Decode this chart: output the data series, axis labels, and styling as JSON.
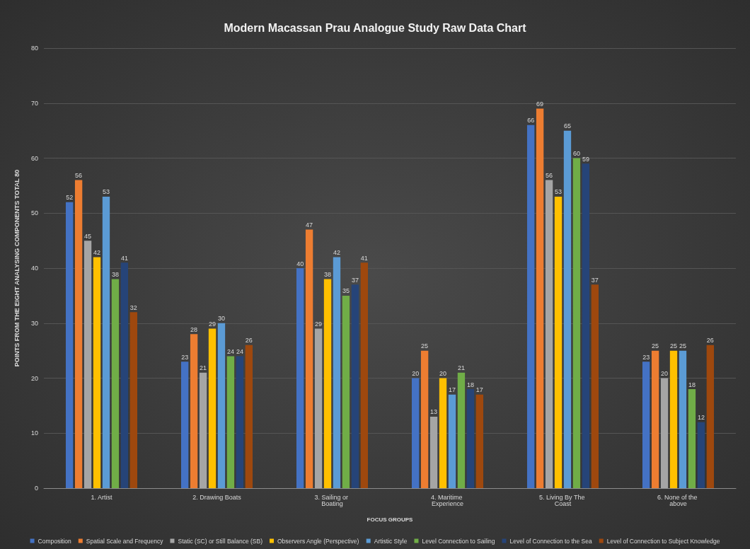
{
  "chart_data": {
    "type": "bar",
    "title": "Modern Macassan Prau Analogue Study Raw Data Chart",
    "xlabel": "FOCUS GROUPS",
    "ylabel": "POINTS FROM THE EIGHT ANALYSING COMPONENTS TOTAL 80",
    "categories": [
      "1. Artist",
      "2. Drawing Boats",
      "3. Sailing or Boating",
      "4. Maritime Experience",
      "5. Living By The Coast",
      "6. None of the above"
    ],
    "series": [
      {
        "name": "Composition",
        "color": "#4472c4",
        "values": [
          52,
          23,
          40,
          20,
          66,
          23
        ]
      },
      {
        "name": "Spatial Scale and Frequency",
        "color": "#ed7d31",
        "values": [
          56,
          28,
          47,
          25,
          69,
          25
        ]
      },
      {
        "name": "Static (SC) or Still Balance (SB)",
        "color": "#a5a5a5",
        "values": [
          45,
          21,
          29,
          13,
          56,
          20
        ]
      },
      {
        "name": "Observers Angle (Perspective)",
        "color": "#ffc000",
        "values": [
          42,
          29,
          38,
          20,
          53,
          25
        ]
      },
      {
        "name": "Artistic Style",
        "color": "#5b9bd5",
        "values": [
          53,
          30,
          42,
          17,
          65,
          25
        ]
      },
      {
        "name": "Level Connection to Sailing",
        "color": "#70ad47",
        "values": [
          38,
          24,
          35,
          21,
          60,
          18
        ]
      },
      {
        "name": "Level of Connection to the Sea",
        "color": "#264478",
        "values": [
          41,
          24,
          37,
          18,
          59,
          12
        ]
      },
      {
        "name": "Level of Connection to Subject Knowledge",
        "color": "#9e480e",
        "values": [
          32,
          26,
          41,
          17,
          37,
          26
        ]
      }
    ],
    "ylim": [
      0,
      80
    ],
    "yticks": [
      0,
      10,
      20,
      30,
      40,
      50,
      60,
      70,
      80
    ],
    "grid": "y",
    "legend": "bottom",
    "data_labels": true
  }
}
